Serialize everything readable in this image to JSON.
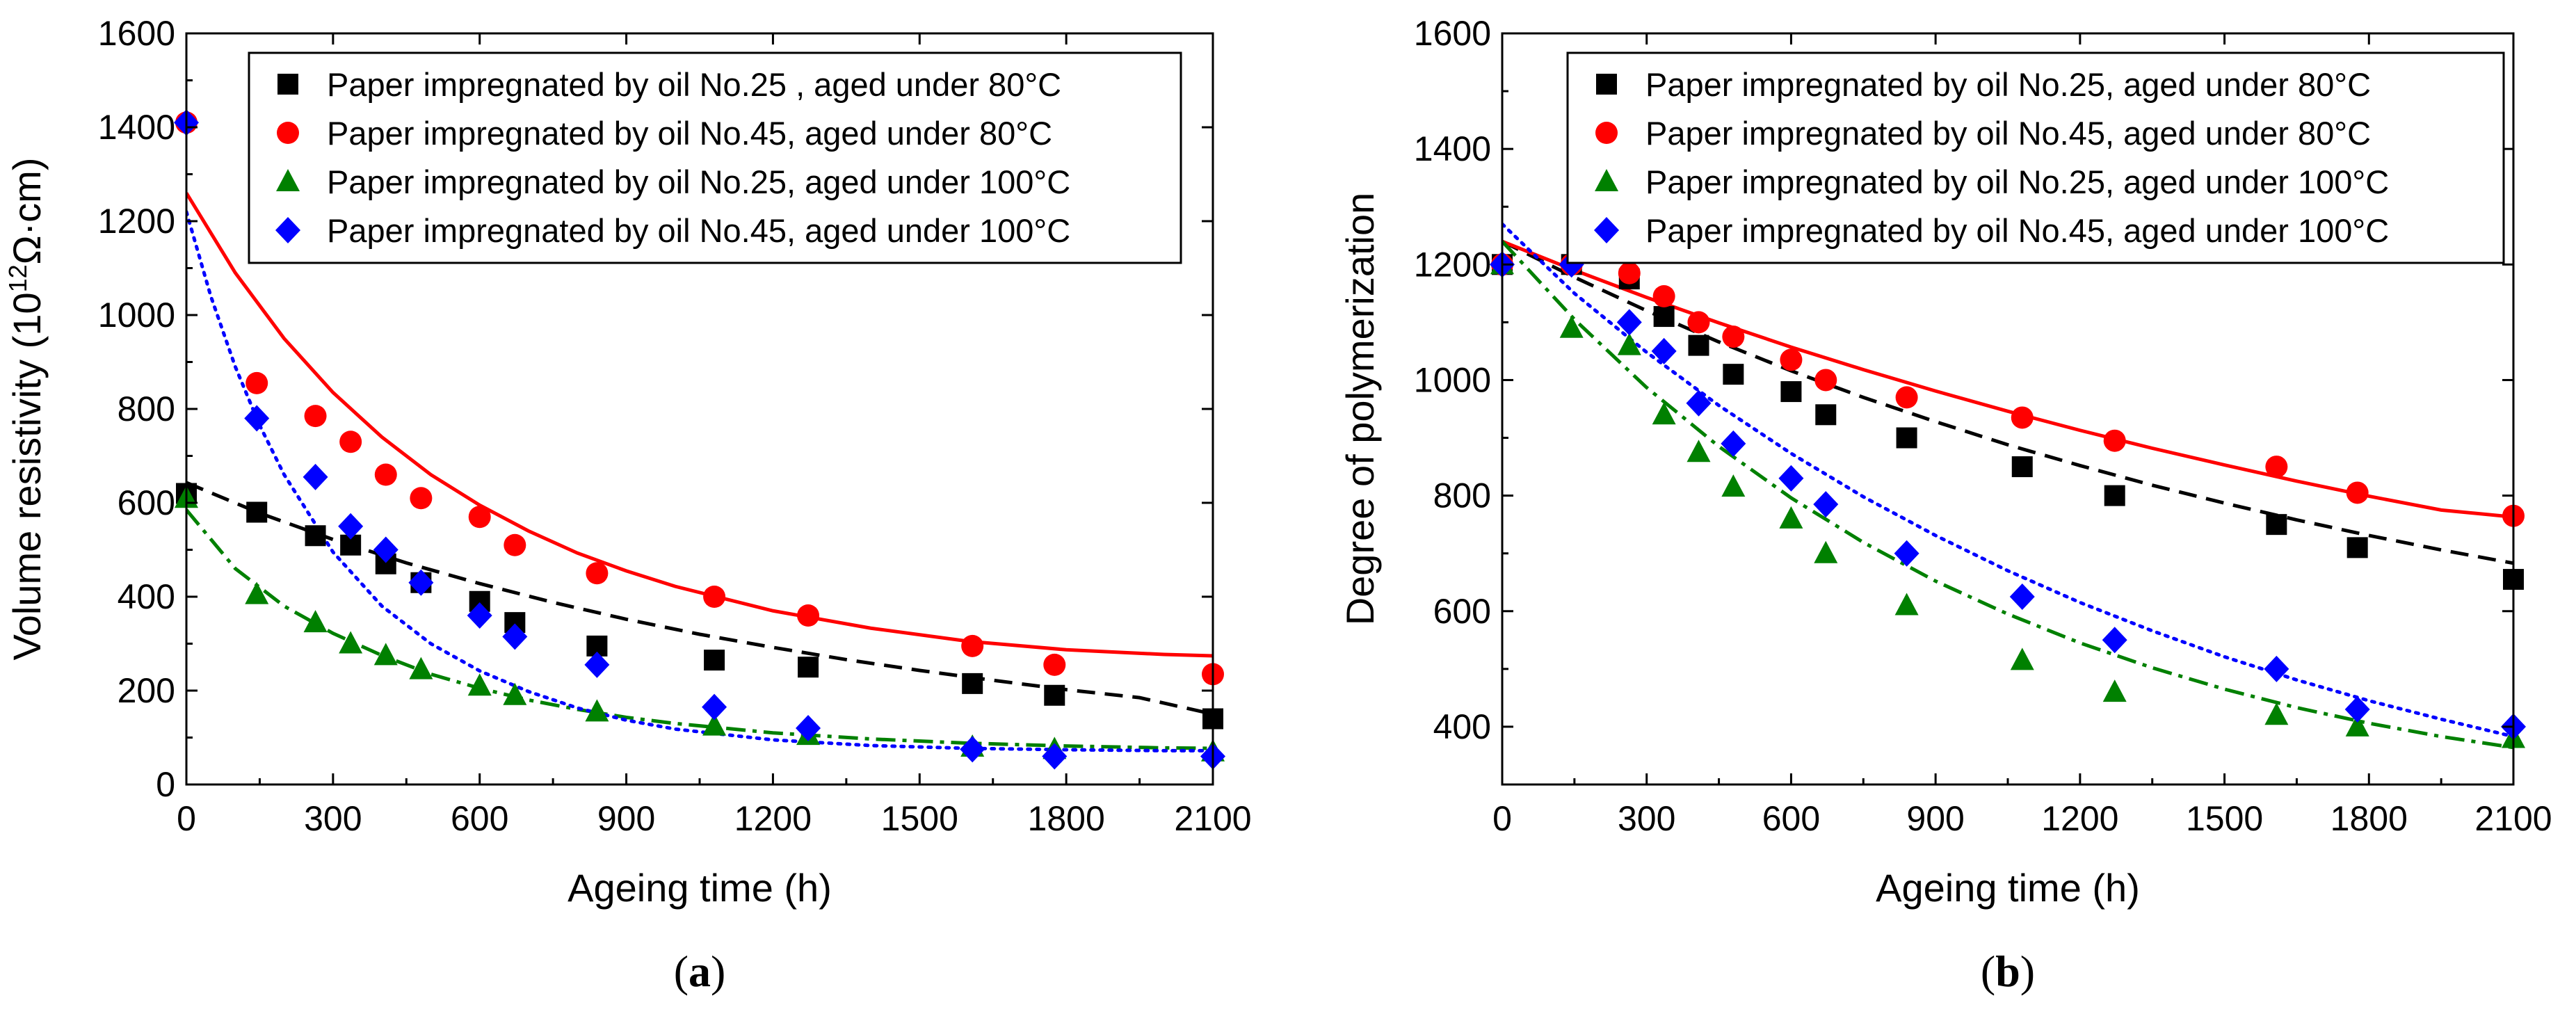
{
  "chart_data": [
    {
      "type": "scatter",
      "panel_label": "(a)",
      "panel_letter": "a",
      "xlabel": "Ageing time (h)",
      "ylabel": "Volume resistivity (10¹²Ω·cm)",
      "xlim": [
        0,
        2100
      ],
      "ylim": [
        0,
        1600
      ],
      "xticks": [
        "0",
        "300",
        "600",
        "900",
        "1200",
        "1500",
        "1800",
        "2100"
      ],
      "yticks": [
        "0",
        "200",
        "400",
        "600",
        "800",
        "1000",
        "1200",
        "1400",
        "1600"
      ],
      "legend_position": "top-right",
      "series": [
        {
          "name": "Paper impregnated by oil No.25 , aged under 80°C",
          "marker": "square",
          "color": "#000000",
          "line_style": "dashed",
          "x": [
            0,
            144,
            264,
            336,
            408,
            480,
            600,
            672,
            840,
            1080,
            1272,
            1608,
            1776,
            2100
          ],
          "y": [
            620,
            580,
            530,
            510,
            470,
            430,
            390,
            345,
            295,
            265,
            250,
            215,
            190,
            140
          ],
          "fit": {
            "x": [
              0,
              150,
              300,
              450,
              600,
              750,
              900,
              1050,
              1200,
              1350,
              1500,
              1650,
              1800,
              1950,
              2100
            ],
            "y": [
              643,
              578,
              522,
              472,
              428,
              388,
              352,
              320,
              292,
              266,
              243,
              222,
              202,
              185,
              150
            ]
          }
        },
        {
          "name": "Paper impregnated by oil No.45, aged under 80°C",
          "marker": "circle",
          "color": "#ff0000",
          "line_style": "solid",
          "x": [
            0,
            144,
            264,
            336,
            408,
            480,
            600,
            672,
            840,
            1080,
            1272,
            1608,
            1776,
            2100
          ],
          "y": [
            1410,
            855,
            785,
            730,
            660,
            610,
            570,
            510,
            450,
            400,
            360,
            295,
            255,
            235
          ],
          "fit": {
            "x": [
              0,
              100,
              200,
              300,
              400,
              500,
              600,
              700,
              800,
              900,
              1000,
              1200,
              1400,
              1600,
              1800,
              2000,
              2100
            ],
            "y": [
              1260,
              1090,
              950,
              835,
              740,
              660,
              595,
              540,
              493,
              455,
              422,
              370,
              333,
              305,
              287,
              277,
              274
            ]
          }
        },
        {
          "name": "Paper impregnated by oil No.25, aged under 100°C",
          "marker": "triangle",
          "color": "#008000",
          "line_style": "dashdot",
          "x": [
            0,
            144,
            264,
            336,
            408,
            480,
            600,
            672,
            840,
            1080,
            1272,
            1608,
            1776,
            2100
          ],
          "y": [
            610,
            405,
            345,
            300,
            275,
            245,
            210,
            190,
            155,
            125,
            105,
            80,
            75,
            70
          ],
          "fit": {
            "x": [
              0,
              100,
              200,
              300,
              400,
              500,
              600,
              700,
              800,
              900,
              1000,
              1200,
              1400,
              1600,
              1800,
              2000,
              2100
            ],
            "y": [
              585,
              460,
              380,
              322,
              275,
              235,
              205,
              180,
              160,
              143,
              130,
              110,
              97,
              88,
              82,
              78,
              77
            ]
          }
        },
        {
          "name": "Paper impregnated by oil No.45, aged under 100°C",
          "marker": "diamond",
          "color": "#0000ff",
          "line_style": "dotted",
          "x": [
            0,
            144,
            264,
            336,
            408,
            480,
            600,
            672,
            840,
            1080,
            1272,
            1608,
            1776,
            2100
          ],
          "y": [
            1410,
            780,
            655,
            550,
            500,
            430,
            360,
            315,
            255,
            165,
            120,
            75,
            60,
            60
          ],
          "fit": {
            "x": [
              0,
              50,
              100,
              150,
              200,
              300,
              400,
              500,
              600,
              700,
              800,
              900,
              1000,
              1200,
              1400,
              1600,
              1800,
              2000,
              2100
            ],
            "y": [
              1220,
              1040,
              890,
              765,
              660,
              495,
              380,
              300,
              242,
              198,
              163,
              137,
              118,
              95,
              83,
              77,
              74,
              72,
              72
            ]
          }
        }
      ]
    },
    {
      "type": "scatter",
      "panel_label": "(b)",
      "panel_letter": "b",
      "xlabel": "Ageing time (h)",
      "ylabel": "Degree of polymerization",
      "xlim": [
        0,
        2100
      ],
      "ylim": [
        300,
        1600
      ],
      "xticks": [
        "0",
        "300",
        "600",
        "900",
        "1200",
        "1500",
        "1800",
        "2100"
      ],
      "yticks": [
        "400",
        "600",
        "800",
        "1000",
        "1200",
        "1400",
        "1600"
      ],
      "legend_position": "top-right",
      "series": [
        {
          "name": "Paper impregnated by oil No.25, aged under 80°C",
          "marker": "square",
          "color": "#000000",
          "line_style": "dashed",
          "x": [
            0,
            144,
            264,
            336,
            408,
            480,
            600,
            672,
            840,
            1080,
            1272,
            1608,
            1776,
            2100
          ],
          "y": [
            1200,
            1200,
            1175,
            1110,
            1060,
            1010,
            980,
            940,
            900,
            850,
            800,
            750,
            710,
            655
          ],
          "fit": {
            "x": [
              0,
              150,
              300,
              450,
              600,
              750,
              900,
              1050,
              1200,
              1350,
              1500,
              1650,
              1800,
              1950,
              2100
            ],
            "y": [
              1240,
              1178,
              1120,
              1066,
              1016,
              970,
              928,
              888,
              852,
              818,
              787,
              758,
              731,
              706,
              683
            ]
          }
        },
        {
          "name": "Paper impregnated by oil No.45, aged under 80°C",
          "marker": "circle",
          "color": "#ff0000",
          "line_style": "solid",
          "x": [
            0,
            144,
            264,
            336,
            408,
            480,
            600,
            672,
            840,
            1080,
            1272,
            1608,
            1776,
            2100
          ],
          "y": [
            1200,
            1200,
            1185,
            1145,
            1100,
            1075,
            1035,
            1000,
            970,
            935,
            895,
            850,
            805,
            765
          ],
          "fit": {
            "x": [
              0,
              150,
              300,
              450,
              600,
              750,
              900,
              1050,
              1200,
              1350,
              1500,
              1650,
              1800,
              1950,
              2100
            ],
            "y": [
              1240,
              1190,
              1143,
              1099,
              1057,
              1018,
              981,
              946,
              913,
              882,
              853,
              825,
              799,
              775,
              763
            ]
          }
        },
        {
          "name": "Paper impregnated by oil No.25, aged under 100°C",
          "marker": "triangle",
          "color": "#008000",
          "line_style": "dashdot",
          "x": [
            0,
            144,
            264,
            336,
            408,
            480,
            600,
            672,
            840,
            1080,
            1272,
            1608,
            1776,
            2100
          ],
          "y": [
            1200,
            1090,
            1060,
            940,
            875,
            815,
            760,
            700,
            610,
            515,
            460,
            420,
            400,
            380
          ],
          "fit": {
            "x": [
              0,
              150,
              300,
              450,
              600,
              750,
              900,
              1050,
              1200,
              1350,
              1500,
              1650,
              1800,
              1950,
              2100
            ],
            "y": [
              1240,
              1105,
              987,
              885,
              796,
              719,
              652,
              595,
              545,
              502,
              465,
              433,
              406,
              383,
              364
            ]
          }
        },
        {
          "name": "Paper impregnated by oil No.45, aged under 100°C",
          "marker": "diamond",
          "color": "#0000ff",
          "line_style": "dotted",
          "x": [
            0,
            144,
            264,
            336,
            408,
            480,
            600,
            672,
            840,
            1080,
            1272,
            1608,
            1776,
            2100
          ],
          "y": [
            1200,
            1200,
            1100,
            1050,
            960,
            890,
            830,
            785,
            700,
            625,
            550,
            500,
            430,
            400
          ],
          "fit": {
            "x": [
              0,
              150,
              300,
              450,
              600,
              750,
              900,
              1050,
              1200,
              1350,
              1500,
              1650,
              1800,
              1950,
              2100
            ],
            "y": [
              1270,
              1150,
              1048,
              956,
              873,
              798,
              731,
              670,
              615,
              566,
              521,
              481,
              445,
              413,
              383
            ]
          }
        }
      ]
    }
  ]
}
